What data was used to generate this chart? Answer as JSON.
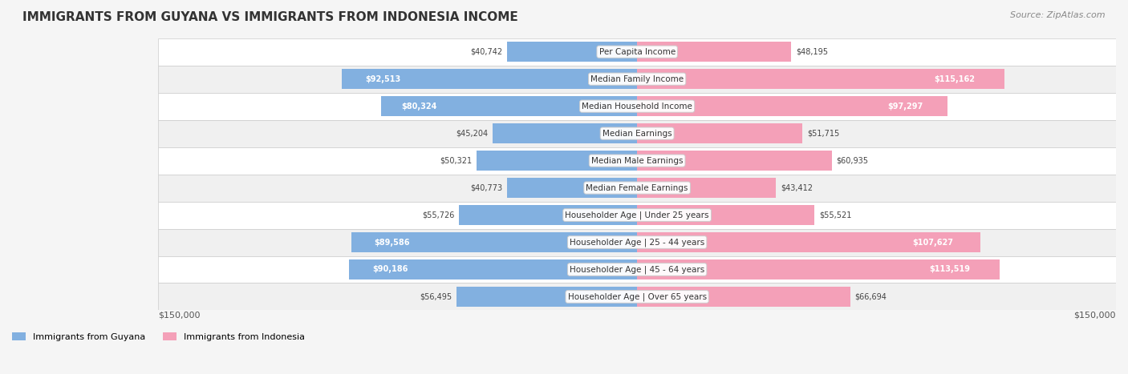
{
  "title": "IMMIGRANTS FROM GUYANA VS IMMIGRANTS FROM INDONESIA INCOME",
  "source": "Source: ZipAtlas.com",
  "categories": [
    "Per Capita Income",
    "Median Family Income",
    "Median Household Income",
    "Median Earnings",
    "Median Male Earnings",
    "Median Female Earnings",
    "Householder Age | Under 25 years",
    "Householder Age | 25 - 44 years",
    "Householder Age | 45 - 64 years",
    "Householder Age | Over 65 years"
  ],
  "guyana_values": [
    40742,
    92513,
    80324,
    45204,
    50321,
    40773,
    55726,
    89586,
    90186,
    56495
  ],
  "indonesia_values": [
    48195,
    115162,
    97297,
    51715,
    60935,
    43412,
    55521,
    107627,
    113519,
    66694
  ],
  "guyana_labels": [
    "$40,742",
    "$92,513",
    "$80,324",
    "$45,204",
    "$50,321",
    "$40,773",
    "$55,726",
    "$89,586",
    "$90,186",
    "$56,495"
  ],
  "indonesia_labels": [
    "$48,195",
    "$115,162",
    "$97,297",
    "$51,715",
    "$60,935",
    "$43,412",
    "$55,521",
    "$107,627",
    "$113,519",
    "$66,694"
  ],
  "guyana_color": "#82b0e0",
  "guyana_color_dark": "#5b9bd5",
  "indonesia_color": "#f4a0b8",
  "indonesia_color_dark": "#f06090",
  "max_value": 150000,
  "background_color": "#f5f5f5",
  "row_bg_color": "#ffffff",
  "row_alt_bg_color": "#f0f0f0",
  "legend_guyana": "Immigrants from Guyana",
  "legend_indonesia": "Immigrants from Indonesia",
  "xlabel_left": "$150,000",
  "xlabel_right": "$150,000"
}
